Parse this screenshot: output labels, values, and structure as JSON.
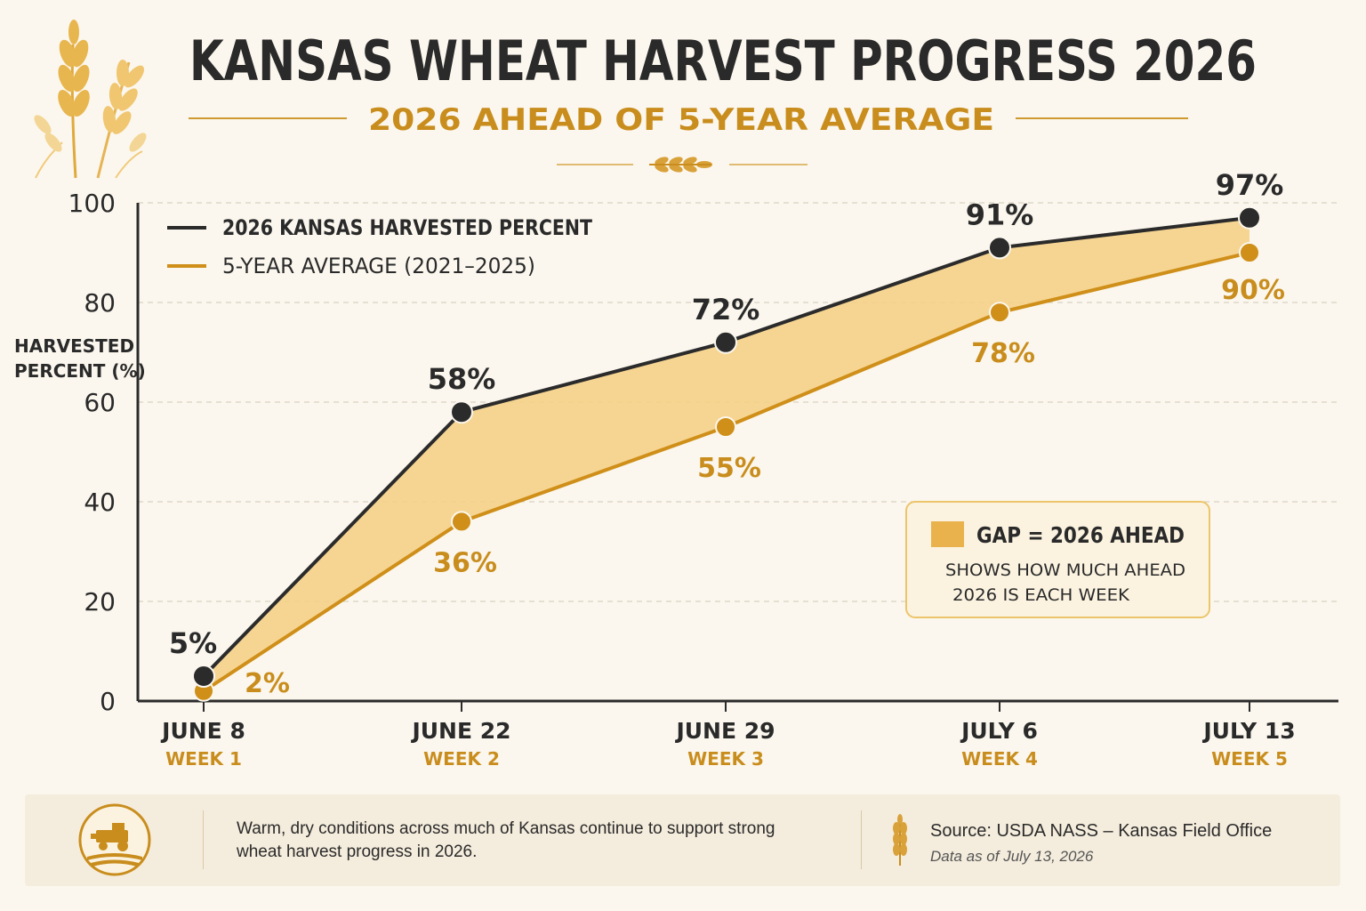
{
  "header": {
    "title": "KANSAS WHEAT HARVEST PROGRESS 2026",
    "subtitle": "2026 AHEAD OF 5-YEAR AVERAGE"
  },
  "chart_data": {
    "type": "line",
    "title": "KANSAS WHEAT HARVEST PROGRESS 2026",
    "subtitle": "2026 AHEAD OF 5-YEAR AVERAGE",
    "ylabel": "HARVESTED PERCENT (%)",
    "xlabel": "",
    "ylim": [
      0,
      100
    ],
    "yticks": [
      0,
      20,
      40,
      60,
      80,
      100
    ],
    "grid": true,
    "legend_position": "top-left",
    "categories": [
      "JUNE 8",
      "JUNE 22",
      "JUNE 29",
      "JULY 6",
      "JULY 13"
    ],
    "category_sublabels": [
      "WEEK 1",
      "WEEK 2",
      "WEEK 3",
      "WEEK 4",
      "WEEK 5"
    ],
    "series": [
      {
        "name": "2026 KANSAS HARVESTED PERCENT",
        "values": [
          5,
          58,
          72,
          91,
          97
        ],
        "labels": [
          "5%",
          "58%",
          "72%",
          "91%",
          "97%"
        ],
        "color": "#2b2b2b"
      },
      {
        "name": "5-YEAR AVERAGE (2021–2025)",
        "values": [
          2,
          36,
          55,
          78,
          90
        ],
        "labels": [
          "2%",
          "36%",
          "55%",
          "78%",
          "90%"
        ],
        "color": "#cf8f19"
      }
    ],
    "gap_fill_color": "#f5cf82",
    "annotation": {
      "title": "GAP = 2026 AHEAD",
      "line1": "SHOWS HOW MUCH AHEAD",
      "line2": "2026 IS EACH WEEK"
    }
  },
  "footer": {
    "note": "Warm, dry conditions across much of Kansas continue to support strong wheat harvest progress in 2026.",
    "source": "Source: USDA NASS – Kansas Field Office",
    "as_of": "Data as of July 13, 2026"
  },
  "icons": [
    "wheat-icon",
    "combine-harvester-icon"
  ]
}
